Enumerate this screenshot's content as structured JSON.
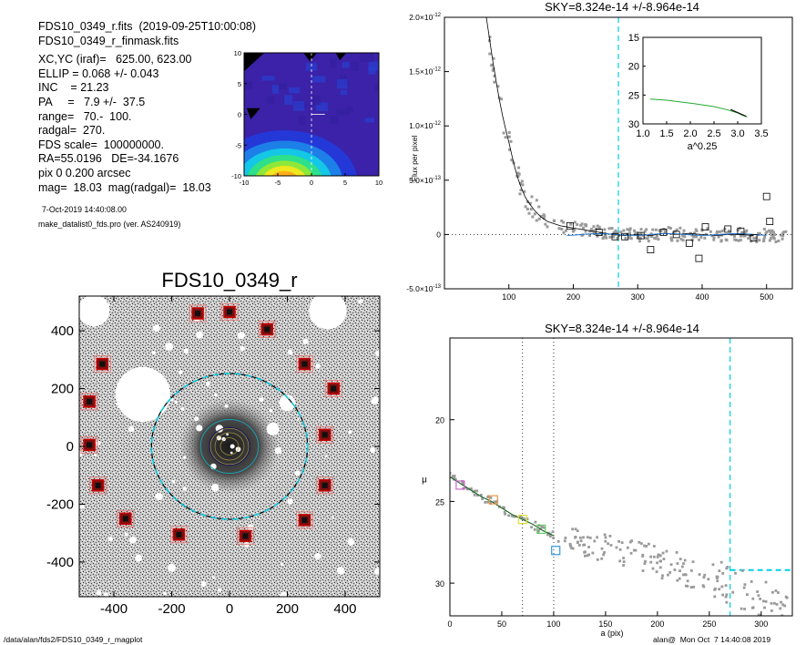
{
  "info": {
    "lines": [
      "FDS10_0349_r.fits  (2019-09-25T10:00:08)",
      "FDS10_0349_r_finmask.fits",
      "XC,YC (iraf)=   625.00, 623.00",
      "ELLIP = 0.068 +/- 0.043",
      "INC    = 21.23",
      "PA     =   7.9 +/-  37.5",
      "range=   70.-  100.",
      "radgal=  270.",
      "FDS scale=  100000000.",
      "RA=55.0196   DE=-34.1676",
      "pix 0 0.200 arcsec",
      "mag=  18.03  mag(radgal)=  18.03"
    ],
    "date": "7-Oct-2019 14:40:08.00",
    "program": "make_datalist0_fds.pro (ver. AS240919)"
  },
  "image_title": "FDS10_0349_r",
  "footer": {
    "path": "/data/alan/fds2/FDS10_0349_r_magplot",
    "stamp": "alan@  Mon Oct  7 14:40:08 2019"
  },
  "colors": {
    "sky_line": "#00cfe8",
    "model_curve": "#22aa33",
    "data_points": "#9a9a9a",
    "square_red": "#cc0000"
  },
  "chart_data": [
    {
      "type": "heatmap",
      "title": "",
      "xlim": [
        -10,
        10
      ],
      "ylim": [
        -10,
        10
      ],
      "xticks": [
        "-10",
        "-5",
        "0",
        "5",
        "10"
      ],
      "yticks": [
        "10",
        "5",
        "0",
        "-5",
        "-10"
      ],
      "note": "central region contour image, colour levels"
    },
    {
      "type": "scatter",
      "title": "",
      "xlim": [
        -520,
        520
      ],
      "ylim": [
        -520,
        520
      ],
      "xticks": [
        "-400",
        "-200",
        "0",
        "200",
        "400"
      ],
      "yticks": [
        "400",
        "200",
        "0",
        "-200",
        "-400"
      ],
      "sky_boxes": [
        [
          -110,
          460
        ],
        [
          0,
          465
        ],
        [
          130,
          405
        ],
        [
          -440,
          285
        ],
        [
          260,
          285
        ],
        [
          -485,
          155
        ],
        [
          360,
          200
        ],
        [
          -485,
          5
        ],
        [
          330,
          40
        ],
        [
          -455,
          -135
        ],
        [
          330,
          -135
        ],
        [
          -360,
          -250
        ],
        [
          260,
          -255
        ],
        [
          -175,
          -305
        ],
        [
          55,
          -310
        ]
      ],
      "ellipses": [
        {
          "a": 270,
          "b": 252,
          "label": "radgal"
        },
        {
          "a": 100,
          "b": 93,
          "label": "range outer"
        },
        {
          "a": 70,
          "b": 65,
          "label": "range inner"
        }
      ]
    },
    {
      "type": "line",
      "title": "SKY=8.324e-14 +/-8.964e-14",
      "xlabel": "",
      "ylabel": "Flux per pixel",
      "xlim": [
        0,
        540
      ],
      "ylim": [
        -5e-13,
        2e-12
      ],
      "xticks": [
        "100",
        "200",
        "300",
        "400",
        "500"
      ],
      "yticks": [
        "2.0x10-12",
        "1.5x10-12",
        "1.0x10-12",
        "5.0x10-13",
        "0",
        "-5.0x10-13"
      ],
      "sky_radius": 270,
      "profile": {
        "x": [
          65,
          70,
          75,
          80,
          85,
          90,
          95,
          100,
          105,
          110,
          115,
          120,
          125,
          130,
          140,
          150,
          160,
          170,
          180,
          190,
          200,
          220,
          240,
          260,
          280,
          300,
          320,
          340,
          360,
          380,
          400,
          420,
          440,
          460,
          480
        ],
        "y": [
          2e-12,
          1.8e-12,
          1.6e-12,
          1.42e-12,
          1.25e-12,
          1.1e-12,
          9.7e-13,
          8.5e-13,
          7.2e-13,
          6e-13,
          5e-13,
          4.2e-13,
          3.5e-13,
          3e-13,
          2.2e-13,
          1.6e-13,
          1.2e-13,
          1e-13,
          8e-14,
          7e-14,
          6e-14,
          4e-14,
          2e-14,
          0.0,
          -1e-14,
          0.0,
          -1e-14,
          1e-14,
          0.0,
          1e-14,
          0.0,
          -1e-14,
          0.0,
          0.0,
          -1e-14
        ]
      },
      "squares": [
        [
          195,
          8e-14
        ],
        [
          240,
          2e-14
        ],
        [
          265,
          -2e-14
        ],
        [
          280,
          -2e-14
        ],
        [
          305,
          -1e-14
        ],
        [
          320,
          -1.4e-13
        ],
        [
          340,
          2e-14
        ],
        [
          360,
          0.0
        ],
        [
          380,
          -8e-14
        ],
        [
          395,
          -2.2e-13
        ],
        [
          405,
          7e-14
        ],
        [
          440,
          5e-14
        ],
        [
          460,
          3e-14
        ],
        [
          480,
          -3e-14
        ],
        [
          500,
          3.5e-13
        ],
        [
          505,
          1.2e-13
        ]
      ],
      "inset": {
        "type": "line",
        "xlabel": "a^0.25",
        "xlim": [
          1.0,
          3.5
        ],
        "ylim": [
          30,
          15
        ],
        "xticks": [
          "1.0",
          "1.5",
          "2.0",
          "2.5",
          "3.0",
          "3.5"
        ],
        "yticks": [
          "15",
          "20",
          "25",
          "30"
        ],
        "x": [
          1.15,
          1.5,
          2.0,
          2.5,
          2.8,
          3.0,
          3.1,
          3.2
        ],
        "y": [
          25.7,
          25.9,
          26.4,
          27.0,
          27.6,
          28.1,
          28.5,
          28.8
        ]
      }
    },
    {
      "type": "line",
      "title": "SKY=8.324e-14 +/-8.964e-14",
      "xlabel": "a (pix)",
      "ylabel": "μ",
      "xlim": [
        0,
        330
      ],
      "ylim": [
        32,
        15
      ],
      "xticks": [
        "0",
        "50",
        "100",
        "150",
        "200",
        "250",
        "300"
      ],
      "yticks": [
        "20",
        "25",
        "30"
      ],
      "range_lines": [
        70,
        100
      ],
      "sky_radius": 270,
      "sky_level": 29.2,
      "profile": {
        "x": [
          0,
          10,
          20,
          30,
          40,
          50,
          60,
          70,
          80,
          90,
          100,
          120,
          140,
          160,
          180,
          200,
          220,
          240,
          260,
          280,
          300,
          320
        ],
        "y": [
          23.5,
          23.9,
          24.3,
          24.7,
          25.0,
          25.4,
          25.8,
          26.1,
          26.4,
          26.8,
          27.1,
          27.4,
          27.7,
          28.0,
          28.2,
          28.6,
          29.0,
          29.4,
          29.9,
          30.4,
          30.9,
          31.5
        ]
      },
      "squares": [
        {
          "x": 10,
          "y": 24.0,
          "color": "#cc66cc"
        },
        {
          "x": 42,
          "y": 24.9,
          "color": "#ee9944"
        },
        {
          "x": 70,
          "y": 26.1,
          "color": "#dddd33"
        },
        {
          "x": 88,
          "y": 26.7,
          "color": "#66cc66"
        },
        {
          "x": 102,
          "y": 28.0,
          "color": "#3399dd"
        }
      ]
    }
  ]
}
